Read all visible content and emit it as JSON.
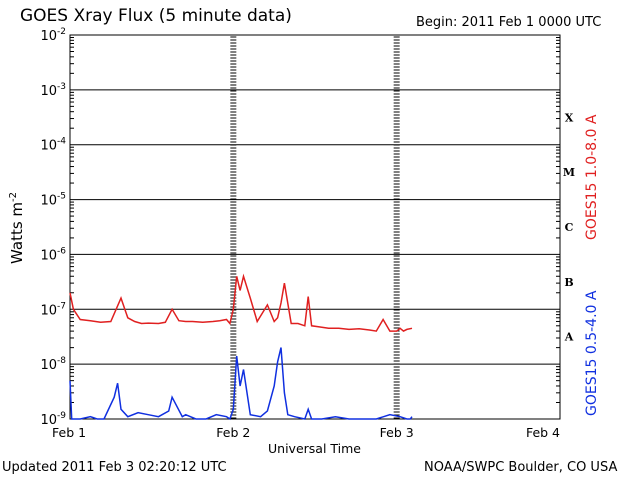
{
  "header": {
    "title": "GOES Xray Flux (5 minute data)",
    "begin": "Begin:  2011 Feb 1 0000 UTC"
  },
  "footer": {
    "updated": "Updated 2011 Feb  3 02:20:12 UTC",
    "credit": "NOAA/SWPC Boulder, CO USA"
  },
  "colors": {
    "long_channel": "#e02020",
    "short_channel": "#1030e0"
  },
  "chart_data": {
    "type": "line",
    "xlabel": "Universal Time",
    "ylabel": "Watts m",
    "ylabel_exp": "-2",
    "yscale": "log",
    "ylim": [
      1e-09,
      0.01
    ],
    "xlim": [
      "2011-02-01 00:00",
      "2011-02-04 00:00"
    ],
    "x_ticks": [
      "Feb 1",
      "Feb 2",
      "Feb 3",
      "Feb 4"
    ],
    "y_ticks": [
      {
        "base": "10",
        "exp": "-9",
        "value": 1e-09
      },
      {
        "base": "10",
        "exp": "-8",
        "value": 1e-08
      },
      {
        "base": "10",
        "exp": "-7",
        "value": 1e-07
      },
      {
        "base": "10",
        "exp": "-6",
        "value": 1e-06
      },
      {
        "base": "10",
        "exp": "-5",
        "value": 1e-05
      },
      {
        "base": "10",
        "exp": "-4",
        "value": 0.0001
      },
      {
        "base": "10",
        "exp": "-3",
        "value": 0.001
      },
      {
        "base": "10",
        "exp": "-2",
        "value": 0.01
      }
    ],
    "flare_classes": [
      {
        "label": "A",
        "low": 1e-08,
        "high": 1e-07
      },
      {
        "label": "B",
        "low": 1e-07,
        "high": 1e-06
      },
      {
        "label": "C",
        "low": 1e-06,
        "high": 1e-05
      },
      {
        "label": "M",
        "low": 1e-05,
        "high": 0.0001
      },
      {
        "label": "X",
        "low": 0.0001,
        "high": 0.001
      }
    ],
    "grid": true,
    "series": [
      {
        "name": "GOES15 1.0-8.0 A",
        "x": [
          "2011-02-01 00:00",
          "2011-02-01 00:30",
          "2011-02-01 01:30",
          "2011-02-01 03:00",
          "2011-02-01 04:30",
          "2011-02-01 06:00",
          "2011-02-01 07:30",
          "2011-02-01 08:30",
          "2011-02-01 09:30",
          "2011-02-01 10:30",
          "2011-02-01 11:30",
          "2011-02-01 13:00",
          "2011-02-01 14:00",
          "2011-02-01 15:00",
          "2011-02-01 16:00",
          "2011-02-01 17:00",
          "2011-02-01 18:00",
          "2011-02-01 19:30",
          "2011-02-01 21:00",
          "2011-02-01 22:00",
          "2011-02-01 23:00",
          "2011-02-01 23:30",
          "2011-02-02 00:00",
          "2011-02-02 00:30",
          "2011-02-02 01:00",
          "2011-02-02 01:30",
          "2011-02-02 02:30",
          "2011-02-02 03:30",
          "2011-02-02 05:00",
          "2011-02-02 06:00",
          "2011-02-02 06:30",
          "2011-02-02 07:00",
          "2011-02-02 07:30",
          "2011-02-02 08:30",
          "2011-02-02 09:30",
          "2011-02-02 10:30",
          "2011-02-02 11:00",
          "2011-02-02 11:30",
          "2011-02-02 12:30",
          "2011-02-02 14:00",
          "2011-02-02 15:30",
          "2011-02-02 17:00",
          "2011-02-02 18:30",
          "2011-02-02 20:00",
          "2011-02-02 21:00",
          "2011-02-02 22:00",
          "2011-02-02 23:00",
          "2011-02-03 00:00",
          "2011-02-03 00:30",
          "2011-02-03 01:00",
          "2011-02-03 01:30",
          "2011-02-03 02:15"
        ],
        "y": [
          2e-07,
          1e-07,
          6.5e-08,
          6.2e-08,
          5.8e-08,
          6e-08,
          1.6e-07,
          7e-08,
          6e-08,
          5.5e-08,
          5.6e-08,
          5.5e-08,
          5.8e-08,
          1e-07,
          6.2e-08,
          6e-08,
          6e-08,
          5.8e-08,
          6e-08,
          6.2e-08,
          6.5e-08,
          5.5e-08,
          1e-07,
          4e-07,
          2.2e-07,
          4e-07,
          1.6e-07,
          6e-08,
          1.2e-07,
          6e-08,
          7e-08,
          1.3e-07,
          3e-07,
          5.5e-08,
          5.5e-08,
          5e-08,
          1.7e-07,
          5e-08,
          4.8e-08,
          4.5e-08,
          4.5e-08,
          4.3e-08,
          4.4e-08,
          4.2e-08,
          4e-08,
          6.5e-08,
          4e-08,
          4e-08,
          4.5e-08,
          4e-08,
          4.3e-08,
          4.5e-08
        ]
      },
      {
        "name": "GOES15 0.5-4.0 A",
        "x": [
          "2011-02-01 00:00",
          "2011-02-01 00:15",
          "2011-02-01 01:30",
          "2011-02-01 03:00",
          "2011-02-01 04:00",
          "2011-02-01 05:00",
          "2011-02-01 06:30",
          "2011-02-01 07:00",
          "2011-02-01 07:30",
          "2011-02-01 08:30",
          "2011-02-01 10:00",
          "2011-02-01 11:30",
          "2011-02-01 13:00",
          "2011-02-01 14:30",
          "2011-02-01 15:00",
          "2011-02-01 16:30",
          "2011-02-01 17:00",
          "2011-02-01 18:30",
          "2011-02-01 20:00",
          "2011-02-01 21:30",
          "2011-02-01 23:00",
          "2011-02-01 23:30",
          "2011-02-02 00:00",
          "2011-02-02 00:30",
          "2011-02-02 01:00",
          "2011-02-02 01:30",
          "2011-02-02 02:30",
          "2011-02-02 04:00",
          "2011-02-02 05:00",
          "2011-02-02 06:00",
          "2011-02-02 06:30",
          "2011-02-02 07:00",
          "2011-02-02 07:30",
          "2011-02-02 08:00",
          "2011-02-02 09:00",
          "2011-02-02 10:30",
          "2011-02-02 11:00",
          "2011-02-02 11:30",
          "2011-02-02 13:00",
          "2011-02-02 15:00",
          "2011-02-02 17:00",
          "2011-02-02 19:00",
          "2011-02-02 21:00",
          "2011-02-02 23:00",
          "2011-02-03 00:30",
          "2011-02-03 01:30",
          "2011-02-03 02:00",
          "2011-02-03 02:15"
        ],
        "y": [
          5e-09,
          1e-09,
          1e-09,
          1.1e-09,
          1e-09,
          1e-09,
          2.5e-09,
          4.5e-09,
          1.5e-09,
          1.1e-09,
          1.3e-09,
          1.2e-09,
          1.1e-09,
          1.4e-09,
          2.5e-09,
          1.1e-09,
          1.2e-09,
          1e-09,
          1e-09,
          1.2e-09,
          1.1e-09,
          1e-09,
          1.5e-09,
          1.4e-08,
          4e-09,
          8e-09,
          1.2e-09,
          1.1e-09,
          1.4e-09,
          4e-09,
          1.1e-08,
          2e-08,
          3e-09,
          1.2e-09,
          1.1e-09,
          1e-09,
          1.5e-09,
          1e-09,
          1e-09,
          1.1e-09,
          1e-09,
          1e-09,
          1e-09,
          1.2e-09,
          1.1e-09,
          1e-09,
          1e-09,
          1.1e-09
        ]
      }
    ]
  }
}
